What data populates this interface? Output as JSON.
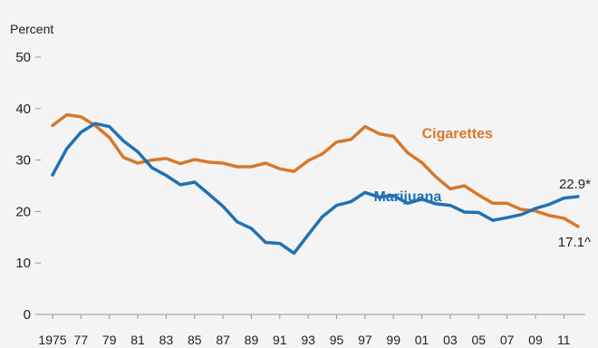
{
  "chart_data": {
    "type": "line",
    "title": "",
    "ylabel": "Percent",
    "xlabel": "",
    "ylim": [
      0,
      50
    ],
    "yticks": [
      0,
      10,
      20,
      30,
      40,
      50
    ],
    "xlim": [
      1975,
      2012
    ],
    "xtick_values": [
      1975,
      1977,
      1979,
      1981,
      1983,
      1985,
      1987,
      1989,
      1991,
      1993,
      1995,
      1997,
      1999,
      2001,
      2003,
      2005,
      2007,
      2009,
      2011
    ],
    "xtick_labels": [
      "1975",
      "77",
      "79",
      "81",
      "83",
      "85",
      "87",
      "89",
      "91",
      "93",
      "95",
      "97",
      "99",
      "01",
      "03",
      "05",
      "07",
      "09",
      "11"
    ],
    "grid": false,
    "x": [
      1975,
      1976,
      1977,
      1978,
      1979,
      1980,
      1981,
      1982,
      1983,
      1984,
      1985,
      1986,
      1987,
      1988,
      1989,
      1990,
      1991,
      1992,
      1993,
      1994,
      1995,
      1996,
      1997,
      1998,
      1999,
      2000,
      2001,
      2002,
      2003,
      2004,
      2005,
      2006,
      2007,
      2008,
      2009,
      2010,
      2011,
      2012
    ],
    "series": [
      {
        "name": "Cigarettes",
        "color": "#d8782a",
        "values": [
          36.7,
          38.8,
          38.4,
          36.7,
          34.4,
          30.5,
          29.4,
          30.0,
          30.3,
          29.3,
          30.1,
          29.6,
          29.4,
          28.7,
          28.7,
          29.4,
          28.3,
          27.8,
          29.9,
          31.2,
          33.5,
          34.0,
          36.5,
          35.1,
          34.6,
          31.4,
          29.5,
          26.7,
          24.4,
          25.0,
          23.2,
          21.6,
          21.6,
          20.4,
          20.1,
          19.2,
          18.7,
          17.1
        ]
      },
      {
        "name": "Marijuana",
        "color": "#2171b5",
        "values": [
          27.1,
          32.2,
          35.4,
          37.1,
          36.5,
          33.7,
          31.6,
          28.5,
          27.0,
          25.2,
          25.7,
          23.4,
          21.0,
          18.0,
          16.7,
          14.0,
          13.8,
          11.9,
          15.5,
          19.0,
          21.2,
          21.9,
          23.7,
          22.8,
          23.1,
          21.6,
          22.4,
          21.5,
          21.2,
          19.9,
          19.8,
          18.3,
          18.8,
          19.4,
          20.6,
          21.4,
          22.6,
          22.9
        ]
      }
    ],
    "series_labels": [
      {
        "text": "Cigarettes",
        "color": "#d8782a",
        "x": 2003.5,
        "y": 34.2
      },
      {
        "text": "Marijuana",
        "color": "#2171b5",
        "x": 2000.0,
        "y": 22.0
      }
    ],
    "end_labels": [
      {
        "text": "22.9*",
        "x": 2012,
        "y": 22.9
      },
      {
        "text": "17.1^",
        "x": 2012,
        "y": 17.1
      }
    ]
  }
}
